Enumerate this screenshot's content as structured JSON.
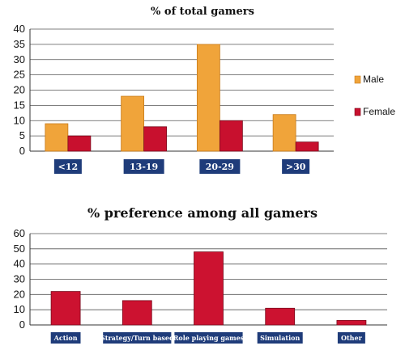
{
  "colors": {
    "male": "#f0a43a",
    "male_dark": "#c77a1a",
    "female": "#c8102e",
    "female_dark": "#7a0a1c",
    "bar2": "#cc1230",
    "label_bg": "#1f3c7a",
    "grid": "#555555"
  },
  "chart_data": [
    {
      "type": "bar",
      "title": "% of total gamers",
      "categories": [
        "<12",
        "13-19",
        "20-29",
        ">30"
      ],
      "series": [
        {
          "name": "Male",
          "values": [
            9,
            18,
            35,
            12
          ]
        },
        {
          "name": "Female",
          "values": [
            5,
            8,
            10,
            3
          ]
        }
      ],
      "ylim": [
        0,
        40
      ],
      "yticks": [
        0,
        5,
        10,
        15,
        20,
        25,
        30,
        35,
        40
      ],
      "legend_placement": "right",
      "grid": true
    },
    {
      "type": "bar",
      "title": "% preference among all gamers",
      "categories": [
        "Action",
        "Strategy/Turn based",
        "Role playing games",
        "Simulation",
        "Other"
      ],
      "values": [
        22,
        16,
        48,
        11,
        3
      ],
      "ylim": [
        0,
        60
      ],
      "yticks": [
        0,
        10,
        20,
        30,
        40,
        50,
        60
      ],
      "grid": true
    }
  ]
}
